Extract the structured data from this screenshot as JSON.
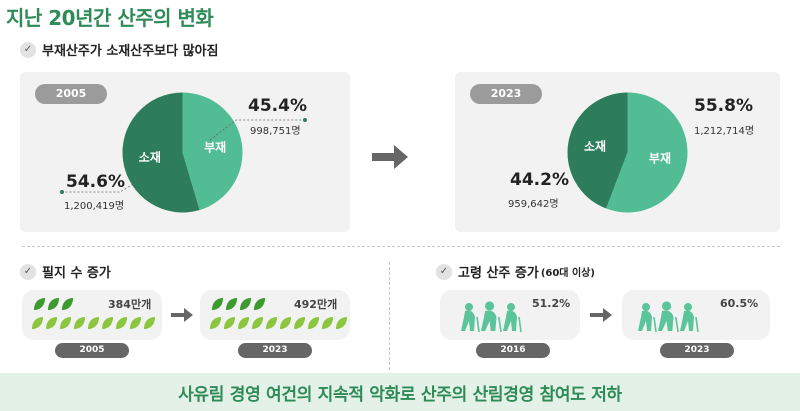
{
  "title": "지난 20년간 산주의 변화",
  "sections": {
    "ownership": {
      "heading": "부재산주가 소재산주보다 많아짐"
    },
    "parcels": {
      "heading": "필지 수 증가"
    },
    "aging": {
      "heading": "고령 산주 증가",
      "heading_suffix": "(60대 이상)"
    }
  },
  "chart_data": [
    {
      "type": "pie",
      "year": "2005",
      "slices": [
        {
          "label": "부재",
          "percent": 45.4,
          "percent_text": "45.4%",
          "count_text": "998,751명",
          "color": "#52bc95"
        },
        {
          "label": "소재",
          "percent": 54.6,
          "percent_text": "54.6%",
          "count_text": "1,200,419명",
          "color": "#2d7d5c"
        }
      ]
    },
    {
      "type": "pie",
      "year": "2023",
      "slices": [
        {
          "label": "부재",
          "percent": 55.8,
          "percent_text": "55.8%",
          "count_text": "1,212,714명",
          "color": "#52bc95"
        },
        {
          "label": "소재",
          "percent": 44.2,
          "percent_text": "44.2%",
          "count_text": "959,642명",
          "color": "#2d7d5c"
        }
      ]
    }
  ],
  "parcels": {
    "before": {
      "year": "2005",
      "value_text": "384만개",
      "value": 384
    },
    "after": {
      "year": "2023",
      "value_text": "492만개",
      "value": 492
    }
  },
  "aging": {
    "before": {
      "year": "2016",
      "value_text": "51.2%",
      "value": 51.2
    },
    "after": {
      "year": "2023",
      "value_text": "60.5%",
      "value": 60.5
    }
  },
  "colors": {
    "dark_green": "#2d7d5c",
    "light_green": "#52bc95",
    "leaf_dark": "#3d9a2f",
    "leaf_light": "#8cc63f",
    "people": "#5cc49b"
  },
  "icons": {
    "arrow": "right-arrow-icon",
    "check": "check-icon",
    "leaf": "leaf-icon",
    "people": "elderly-people-icon"
  },
  "banner": {
    "text": "사유림 경영 여건의 지속적 악화로 산주의 산림경영 참여도 저하"
  }
}
